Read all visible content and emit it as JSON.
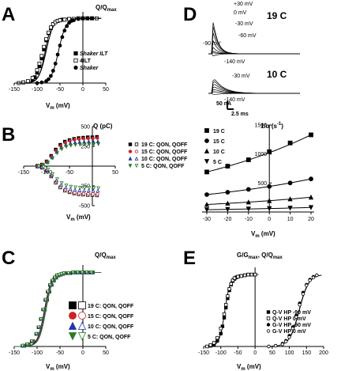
{
  "panels": {
    "A": {
      "letter": "A",
      "ylabel": "Q/Q",
      "ylabel_sub": "max",
      "xlabel": "V",
      "xlabel_sub": "m",
      "xlabel_unit": " (mV)"
    },
    "B": {
      "letter": "B",
      "ylabel": "Q (pC)",
      "xlabel": "V",
      "xlabel_sub": "m",
      "xlabel_unit": " (mV)"
    },
    "C": {
      "letter": "C",
      "ylabel": "Q/Q",
      "ylabel_sub": "max",
      "xlabel": "V",
      "xlabel_sub": "m",
      "xlabel_unit": " (mV)"
    },
    "D": {
      "letter": "D",
      "ylabel": "1/α  (s",
      "ylabel_sup": "-1",
      "ylabel_end": ")",
      "xlabel": "V",
      "xlabel_sub": "m",
      "xlabel_unit": " (mV)"
    },
    "E": {
      "letter": "E",
      "ylabel": "G/G",
      "ylabel_sub": "max",
      "ylabel_mid": ", Q/Q",
      "ylabel_sub2": "max",
      "xlabel": "V",
      "xlabel_sub": "m",
      "xlabel_unit": " (mV)"
    }
  },
  "traces": {
    "temp_19": "19 C",
    "temp_10": "10 C",
    "v_labels_19": [
      "+30 mV",
      "0 mV",
      "-30 mV",
      "-60 mV",
      "-90 mV",
      "-140 mV"
    ],
    "v_labels_10": [
      "-30 mV",
      "-140 mV"
    ],
    "scale_current": "50 nA",
    "scale_time": "2.5 ms"
  },
  "chart_data": [
    {
      "panel": "A",
      "type": "scatter",
      "xlim": [
        -150,
        50
      ],
      "ylim": [
        0,
        1.1
      ],
      "xticks": [
        "-150",
        "-100",
        "-50",
        "0",
        "50"
      ],
      "series": [
        {
          "name": "Shaker ILT",
          "marker": "square-filled",
          "x": [
            -130,
            -120,
            -110,
            -105,
            -100,
            -95,
            -90,
            -85,
            -80,
            -75,
            -70,
            -65,
            -60,
            -55,
            -50,
            -45,
            -40,
            -30,
            -20,
            -10,
            0,
            10,
            20
          ],
          "y": [
            0.01,
            0.02,
            0.05,
            0.09,
            0.16,
            0.26,
            0.38,
            0.52,
            0.66,
            0.77,
            0.85,
            0.91,
            0.94,
            0.96,
            0.97,
            0.98,
            0.98,
            0.99,
            0.99,
            1.0,
            1.0,
            1.0,
            1.0
          ]
        },
        {
          "name": "4ILT",
          "marker": "square-open",
          "x": [
            -140,
            -130,
            -120,
            -110,
            -100,
            -95,
            -90,
            -85,
            -80,
            -75,
            -70,
            -65,
            -60,
            -55,
            -50,
            -40,
            -30,
            -20,
            -10,
            0,
            10,
            20,
            30
          ],
          "y": [
            0.0,
            0.01,
            0.03,
            0.08,
            0.2,
            0.3,
            0.42,
            0.56,
            0.68,
            0.78,
            0.86,
            0.91,
            0.94,
            0.96,
            0.97,
            0.98,
            0.99,
            0.99,
            1.0,
            1.0,
            1.0,
            1.0,
            1.0
          ]
        },
        {
          "name": "Shaker",
          "marker": "circle-filled",
          "x": [
            -100,
            -90,
            -80,
            -75,
            -70,
            -65,
            -60,
            -55,
            -50,
            -45,
            -40,
            -35,
            -30,
            -25,
            -20,
            -10,
            0,
            10,
            20
          ],
          "y": [
            0.0,
            0.01,
            0.03,
            0.06,
            0.11,
            0.19,
            0.3,
            0.44,
            0.58,
            0.71,
            0.81,
            0.88,
            0.93,
            0.96,
            0.97,
            0.99,
            1.0,
            1.0,
            1.0
          ]
        }
      ]
    },
    {
      "panel": "B",
      "type": "scatter",
      "xlim": [
        -150,
        50
      ],
      "ylim": [
        -500,
        500
      ],
      "xticks": [
        "-150",
        "-100",
        "-50",
        "0",
        "50"
      ],
      "yticks": [
        "500",
        "250",
        "-250",
        "-500"
      ],
      "series": [
        {
          "name": "19 C: Q_ON, Q_OFF",
          "color": "#000000",
          "x": [
            -120,
            -110,
            -100,
            -90,
            -80,
            -70,
            -60,
            -50,
            -40,
            -30,
            -20,
            -10,
            0,
            10
          ],
          "on": [
            5,
            20,
            60,
            130,
            210,
            270,
            310,
            330,
            345,
            355,
            360,
            365,
            365,
            370
          ],
          "off": [
            -5,
            -20,
            -60,
            -130,
            -210,
            -270,
            -310,
            -330,
            -345,
            -355,
            -360,
            -365,
            -365,
            -370
          ]
        },
        {
          "name": "15 C: Q_ON, Q_OFF",
          "color": "#cc2222",
          "x": [
            -120,
            -110,
            -100,
            -90,
            -80,
            -70,
            -60,
            -50,
            -40,
            -30,
            -20,
            -10,
            0,
            10
          ],
          "on": [
            5,
            18,
            55,
            120,
            195,
            255,
            295,
            320,
            335,
            342,
            348,
            350,
            352,
            355
          ],
          "off": [
            -5,
            -18,
            -55,
            -120,
            -195,
            -255,
            -295,
            -320,
            -335,
            -342,
            -348,
            -350,
            -352,
            -355
          ]
        },
        {
          "name": "10 C: Q_ON, Q_OFF",
          "color": "#2233aa",
          "x": [
            -120,
            -110,
            -100,
            -90,
            -80,
            -70,
            -60,
            -50,
            -40,
            -30,
            -20,
            -10,
            0,
            10
          ],
          "on": [
            4,
            15,
            50,
            110,
            180,
            235,
            270,
            290,
            300,
            305,
            308,
            310,
            312,
            312
          ],
          "off": [
            -4,
            -15,
            -50,
            -110,
            -180,
            -235,
            -270,
            -290,
            -300,
            -305,
            -308,
            -310,
            -312,
            -312
          ]
        },
        {
          "name": "5 C: Q_ON, Q_OFF",
          "color": "#2a7a2a",
          "x": [
            -120,
            -110,
            -100,
            -90,
            -80,
            -70,
            -60,
            -50,
            -40,
            -30,
            -20,
            -10,
            0,
            10
          ],
          "on": [
            3,
            12,
            45,
            100,
            165,
            215,
            245,
            260,
            268,
            272,
            275,
            276,
            278,
            278
          ],
          "off": [
            -3,
            -12,
            -45,
            -100,
            -165,
            -215,
            -245,
            -260,
            -268,
            -272,
            -275,
            -276,
            -278,
            -278
          ]
        }
      ]
    },
    {
      "panel": "C",
      "type": "scatter",
      "xlim": [
        -150,
        50
      ],
      "ylim": [
        0,
        1.1
      ],
      "xticks": [
        "-150",
        "-100",
        "-50",
        "0",
        "50"
      ],
      "series": [
        {
          "name": "19 C: Q_ON, Q_OFF",
          "color": "#000000",
          "marker": "square"
        },
        {
          "name": "15 C: Q_ON, Q_OFF",
          "color": "#cc2222",
          "marker": "circle"
        },
        {
          "name": "10 C: Q_ON, Q_OFF",
          "color": "#2233aa",
          "marker": "triangle-up"
        },
        {
          "name": "5 C: Q_ON, Q_OFF",
          "color": "#2a7a2a",
          "marker": "triangle-down"
        }
      ],
      "x": [
        -130,
        -120,
        -110,
        -100,
        -95,
        -90,
        -85,
        -80,
        -75,
        -70,
        -65,
        -60,
        -55,
        -50,
        -45,
        -40,
        -30,
        -20,
        -10,
        0,
        10,
        20
      ],
      "y": [
        0.01,
        0.03,
        0.07,
        0.17,
        0.26,
        0.37,
        0.5,
        0.63,
        0.74,
        0.83,
        0.89,
        0.93,
        0.96,
        0.97,
        0.98,
        0.99,
        0.99,
        1.0,
        1.0,
        1.0,
        1.0,
        1.0
      ]
    },
    {
      "panel": "D",
      "type": "scatter",
      "xlim": [
        -30,
        20
      ],
      "ylim": [
        0,
        1500
      ],
      "xticks": [
        "-30",
        "-20",
        "-10",
        "0",
        "10",
        "20"
      ],
      "yticks": [
        "1500",
        "1000",
        "500"
      ],
      "series": [
        {
          "name": "19 C",
          "marker": "square-filled",
          "x": [
            -30,
            -20,
            -10,
            0,
            10,
            20
          ],
          "y": [
            690,
            790,
            900,
            1040,
            1190,
            1330
          ]
        },
        {
          "name": "15 C",
          "marker": "circle-filled",
          "x": [
            -30,
            -20,
            -10,
            0,
            10,
            20
          ],
          "y": [
            300,
            340,
            390,
            440,
            500,
            570
          ]
        },
        {
          "name": "10 C",
          "marker": "triangle-up-filled",
          "x": [
            -30,
            -20,
            -10,
            0,
            10,
            20
          ],
          "y": [
            130,
            150,
            170,
            195,
            225,
            255
          ]
        },
        {
          "name": "5 C",
          "marker": "triangle-down-filled",
          "x": [
            -30,
            -20,
            -10,
            0,
            10,
            20
          ],
          "y": [
            40,
            45,
            52,
            60,
            68,
            78
          ]
        }
      ]
    },
    {
      "panel": "E",
      "type": "scatter",
      "xlim": [
        -150,
        200
      ],
      "ylim": [
        0,
        1.1
      ],
      "xticks": [
        "-150",
        "-100",
        "-50",
        "0",
        "50",
        "100",
        "150",
        "200"
      ],
      "series": [
        {
          "name": "Q-V HP -90 mV",
          "marker": "square-filled",
          "x": [
            -130,
            -120,
            -110,
            -100,
            -95,
            -90,
            -85,
            -80,
            -75,
            -70,
            -65,
            -60,
            -55,
            -50,
            -40,
            -30,
            -20,
            -10,
            0
          ],
          "y": [
            0.01,
            0.03,
            0.08,
            0.18,
            0.28,
            0.4,
            0.54,
            0.67,
            0.78,
            0.86,
            0.91,
            0.94,
            0.96,
            0.97,
            0.98,
            0.99,
            1.0,
            1.0,
            1.0
          ]
        },
        {
          "name": "Q-V HP 0 mV",
          "marker": "square-open",
          "x": [
            -140,
            -130,
            -120,
            -110,
            -100,
            -90,
            -85,
            -80,
            -75,
            -70,
            -65,
            -60,
            -50,
            -40,
            -30,
            -20,
            -10,
            0
          ],
          "y": [
            0.0,
            0.02,
            0.05,
            0.12,
            0.25,
            0.45,
            0.58,
            0.7,
            0.8,
            0.87,
            0.92,
            0.95,
            0.97,
            0.98,
            0.99,
            1.0,
            1.0,
            1.0
          ]
        },
        {
          "name": "G-V HP -90 mV",
          "marker": "circle-filled",
          "x": [
            40,
            60,
            80,
            90,
            100,
            110,
            120,
            130,
            140,
            150,
            160,
            170,
            180
          ],
          "y": [
            0.0,
            0.01,
            0.04,
            0.08,
            0.15,
            0.27,
            0.43,
            0.6,
            0.75,
            0.86,
            0.93,
            0.97,
            0.99
          ]
        },
        {
          "name": "G-V HP 0 mV",
          "marker": "circle-open",
          "x": [
            40,
            60,
            80,
            90,
            100,
            110,
            120,
            130,
            140,
            150,
            160,
            170,
            180
          ],
          "y": [
            0.0,
            0.01,
            0.03,
            0.07,
            0.13,
            0.25,
            0.41,
            0.58,
            0.73,
            0.85,
            0.92,
            0.96,
            0.99
          ]
        }
      ]
    }
  ]
}
